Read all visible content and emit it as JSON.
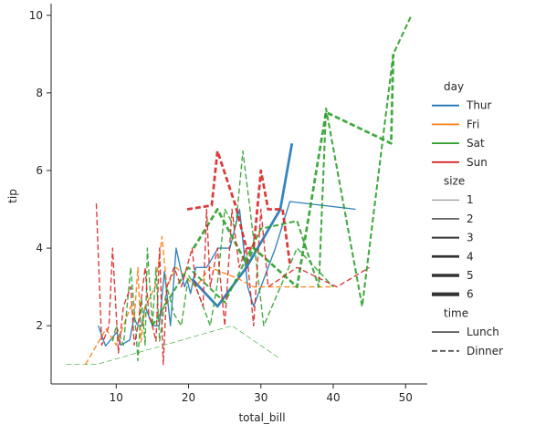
{
  "chart_data": {
    "type": "line",
    "title": "",
    "xlabel": "total_bill",
    "ylabel": "tip",
    "xlim": [
      1,
      53
    ],
    "ylim": [
      0.5,
      10.3
    ],
    "xticks": [
      10,
      20,
      30,
      40,
      50
    ],
    "yticks": [
      2,
      4,
      6,
      8,
      10
    ],
    "grid": false,
    "legend_position": "right",
    "legend": {
      "day": {
        "title": "day",
        "entries": [
          {
            "label": "Thur",
            "color": "#1f77b4"
          },
          {
            "label": "Fri",
            "color": "#ff7f0e"
          },
          {
            "label": "Sat",
            "color": "#2ca02c"
          },
          {
            "label": "Sun",
            "color": "#d62728"
          }
        ]
      },
      "size": {
        "title": "size",
        "entries": [
          {
            "label": "1",
            "width": 0.6
          },
          {
            "label": "2",
            "width": 1.2
          },
          {
            "label": "3",
            "width": 1.8
          },
          {
            "label": "4",
            "width": 2.4
          },
          {
            "label": "5",
            "width": 3.0
          },
          {
            "label": "6",
            "width": 3.6
          }
        ]
      },
      "time": {
        "title": "time",
        "entries": [
          {
            "label": "Lunch",
            "style": "solid"
          },
          {
            "label": "Dinner",
            "style": "dashed"
          }
        ]
      }
    },
    "series": [
      {
        "day": "Thur",
        "size": "2",
        "time": "Lunch",
        "x": [
          7.51,
          8.52,
          10.07,
          10.65,
          11.87,
          12.43,
          13.0,
          13.51,
          14.0,
          15.0,
          15.95,
          16.66,
          17.49,
          18.28,
          19.44,
          19.81,
          20.27,
          21.0,
          22.49,
          24.08,
          25.71,
          27.05,
          28.17,
          29.0,
          30.0,
          32.0,
          34.0,
          43.11
        ],
        "y": [
          2.0,
          1.48,
          1.83,
          1.5,
          1.63,
          2.2,
          2.0,
          2.0,
          2.5,
          2.0,
          2.0,
          3.4,
          2.0,
          4.0,
          3.0,
          3.18,
          2.83,
          3.5,
          3.5,
          4.0,
          4.0,
          5.0,
          3.0,
          2.5,
          3.0,
          4.0,
          5.2,
          5.0
        ]
      },
      {
        "day": "Thur",
        "size": "4",
        "time": "Lunch",
        "x": [
          20.5,
          24.0,
          28.0,
          32.68,
          34.3
        ],
        "y": [
          3.2,
          2.5,
          3.5,
          5.0,
          6.7
        ]
      },
      {
        "day": "Fri",
        "size": "2",
        "time": "Dinner",
        "x": [
          5.75,
          8.58,
          10.0,
          12.0,
          12.5,
          13.0,
          13.42,
          14.0,
          15.38,
          16.0,
          16.32,
          17.0,
          18.3,
          21.0,
          23.0,
          27.0,
          28.97,
          40.17
        ],
        "y": [
          1.0,
          1.92,
          1.5,
          2.5,
          2.2,
          3.5,
          1.58,
          2.5,
          3.0,
          3.8,
          4.3,
          3.0,
          3.5,
          3.0,
          3.5,
          3.2,
          3.0,
          3.0
        ]
      },
      {
        "day": "Sat",
        "size": "1",
        "time": "Dinner",
        "x": [
          3.07,
          7.25,
          26.0,
          32.5
        ],
        "y": [
          1.0,
          1.0,
          2.0,
          1.17
        ]
      },
      {
        "day": "Sat",
        "size": "2",
        "time": "Dinner",
        "x": [
          9.5,
          10.0,
          11.0,
          11.5,
          12.0,
          12.7,
          13.0,
          13.5,
          14.0,
          14.3,
          15.0,
          15.5,
          16.0,
          17.0,
          18.0,
          19.0,
          20.0,
          21.0,
          22.0,
          23.0,
          24.0,
          25.0,
          26.5,
          27.5,
          28.5,
          30.4,
          35.0,
          40.0
        ],
        "y": [
          1.6,
          2.0,
          1.5,
          2.5,
          3.5,
          1.9,
          1.1,
          2.7,
          1.5,
          4.0,
          2.0,
          3.5,
          1.6,
          3.0,
          2.3,
          2.0,
          3.3,
          3.0,
          2.5,
          2.0,
          3.1,
          5.0,
          4.5,
          6.5,
          5.0,
          2.0,
          4.0,
          3.0
        ]
      },
      {
        "day": "Sat",
        "size": "3",
        "time": "Dinner",
        "x": [
          15.0,
          20.0,
          25.0,
          30.0,
          35.0,
          38.0,
          39.0,
          44.0,
          48.3,
          50.8
        ],
        "y": [
          2.0,
          3.5,
          2.6,
          4.5,
          4.7,
          3.0,
          7.6,
          2.5,
          9.0,
          10.0
        ]
      },
      {
        "day": "Sat",
        "size": "4",
        "time": "Dinner",
        "x": [
          20.7,
          24.0,
          28.0,
          29.0,
          35.0,
          39.0,
          48.0,
          48.3
        ],
        "y": [
          4.0,
          5.0,
          3.6,
          4.0,
          3.0,
          7.5,
          6.7,
          9.0
        ]
      },
      {
        "day": "Sun",
        "size": "2",
        "time": "Dinner",
        "x": [
          7.25,
          8.0,
          9.0,
          9.5,
          10.3,
          11.0,
          12.0,
          12.5,
          13.0,
          14.0,
          14.5,
          15.0,
          15.5,
          16.0,
          16.5,
          17.0,
          18.0,
          19.0,
          20.5,
          21.0,
          22.0,
          22.5,
          23.0,
          24.0,
          25.0,
          26.0,
          27.0,
          28.0,
          29.0,
          30.0,
          31.0,
          35.0,
          40.5,
          45.0
        ],
        "y": [
          5.15,
          1.5,
          2.0,
          4.0,
          1.3,
          2.5,
          3.0,
          1.5,
          2.0,
          3.5,
          2.3,
          2.0,
          1.6,
          4.0,
          1.0,
          3.0,
          3.5,
          3.0,
          4.0,
          3.0,
          2.5,
          5.0,
          3.0,
          4.0,
          2.0,
          5.0,
          3.5,
          4.0,
          2.0,
          5.0,
          3.0,
          3.5,
          3.0,
          3.5
        ]
      },
      {
        "day": "Sun",
        "size": "4",
        "time": "Dinner",
        "x": [
          19.8,
          23.2,
          24.0,
          26.5,
          28.0,
          29.0,
          30.0,
          31.0,
          33.0,
          34.0
        ],
        "y": [
          5.0,
          5.1,
          6.5,
          5.1,
          4.0,
          4.0,
          6.0,
          5.0,
          5.0,
          3.6
        ]
      }
    ]
  }
}
